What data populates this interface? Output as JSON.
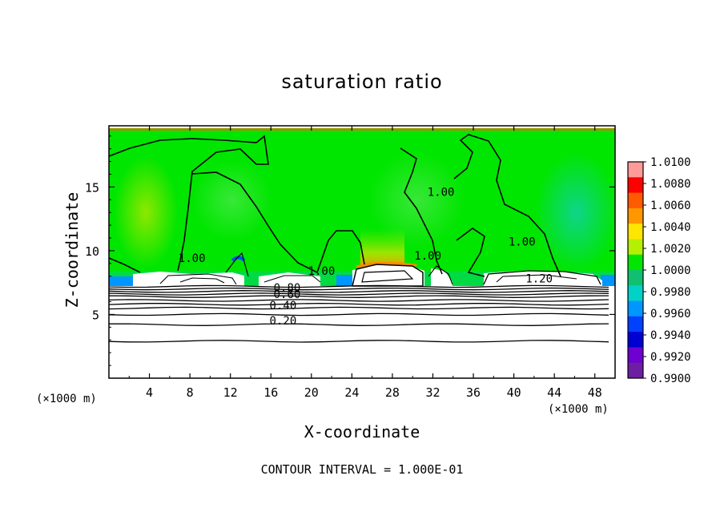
{
  "chart_data": {
    "type": "heatmap",
    "title": "saturation ratio",
    "xlabel": "X-coordinate",
    "ylabel": "Z-coordinate",
    "x_units_left": "(×1000 m)",
    "x_units_right": "(×1000 m)",
    "xlim": [
      0,
      50
    ],
    "ylim": [
      0,
      19.8
    ],
    "x_ticks": [
      4,
      8,
      12,
      16,
      20,
      24,
      28,
      32,
      36,
      40,
      44,
      48
    ],
    "x_tick_labels": [
      "4",
      "8",
      "12",
      "16",
      "20",
      "24",
      "28",
      "32",
      "36",
      "40",
      "44",
      "48"
    ],
    "y_ticks": [
      5,
      10,
      15
    ],
    "y_tick_labels": [
      "5",
      "10",
      "15"
    ],
    "colorbar": {
      "labels": [
        "1.0100",
        "1.0080",
        "1.0060",
        "1.0040",
        "1.0020",
        "1.0000",
        "0.9980",
        "0.9960",
        "0.9940",
        "0.9920",
        "0.9900"
      ],
      "colors": [
        "#ff9a9a",
        "#ff0000",
        "#ff5a00",
        "#ff9800",
        "#ffe600",
        "#b4f000",
        "#00e600",
        "#10c070",
        "#00d2c8",
        "#0096ff",
        "#0040ff",
        "#0000d2",
        "#6e00d0",
        "#6e1ea0"
      ]
    },
    "contour_labels": [
      {
        "text": "1.00",
        "x": 8.2,
        "y": 9.1
      },
      {
        "text": "1.00",
        "x": 32.8,
        "y": 14.3
      },
      {
        "text": "1.00",
        "x": 40.8,
        "y": 10.4
      },
      {
        "text": "1.00",
        "x": 31.5,
        "y": 9.3
      },
      {
        "text": "1.00",
        "x": 21.0,
        "y": 8.1
      },
      {
        "text": "1.20",
        "x": 42.5,
        "y": 7.5
      },
      {
        "text": "0.80",
        "x": 17.6,
        "y": 6.8
      },
      {
        "text": "0.60",
        "x": 17.6,
        "y": 6.3
      },
      {
        "text": "0.40",
        "x": 17.2,
        "y": 5.4
      },
      {
        "text": "0.20",
        "x": 17.2,
        "y": 4.2
      }
    ],
    "contour_levels_lower": [
      7.2,
      7.0,
      6.8,
      6.6,
      6.4,
      6.1,
      5.8,
      5.5,
      5.0,
      4.2,
      2.9
    ],
    "contour_interval": "CONTOUR INTERVAL = 1.000E-01"
  }
}
